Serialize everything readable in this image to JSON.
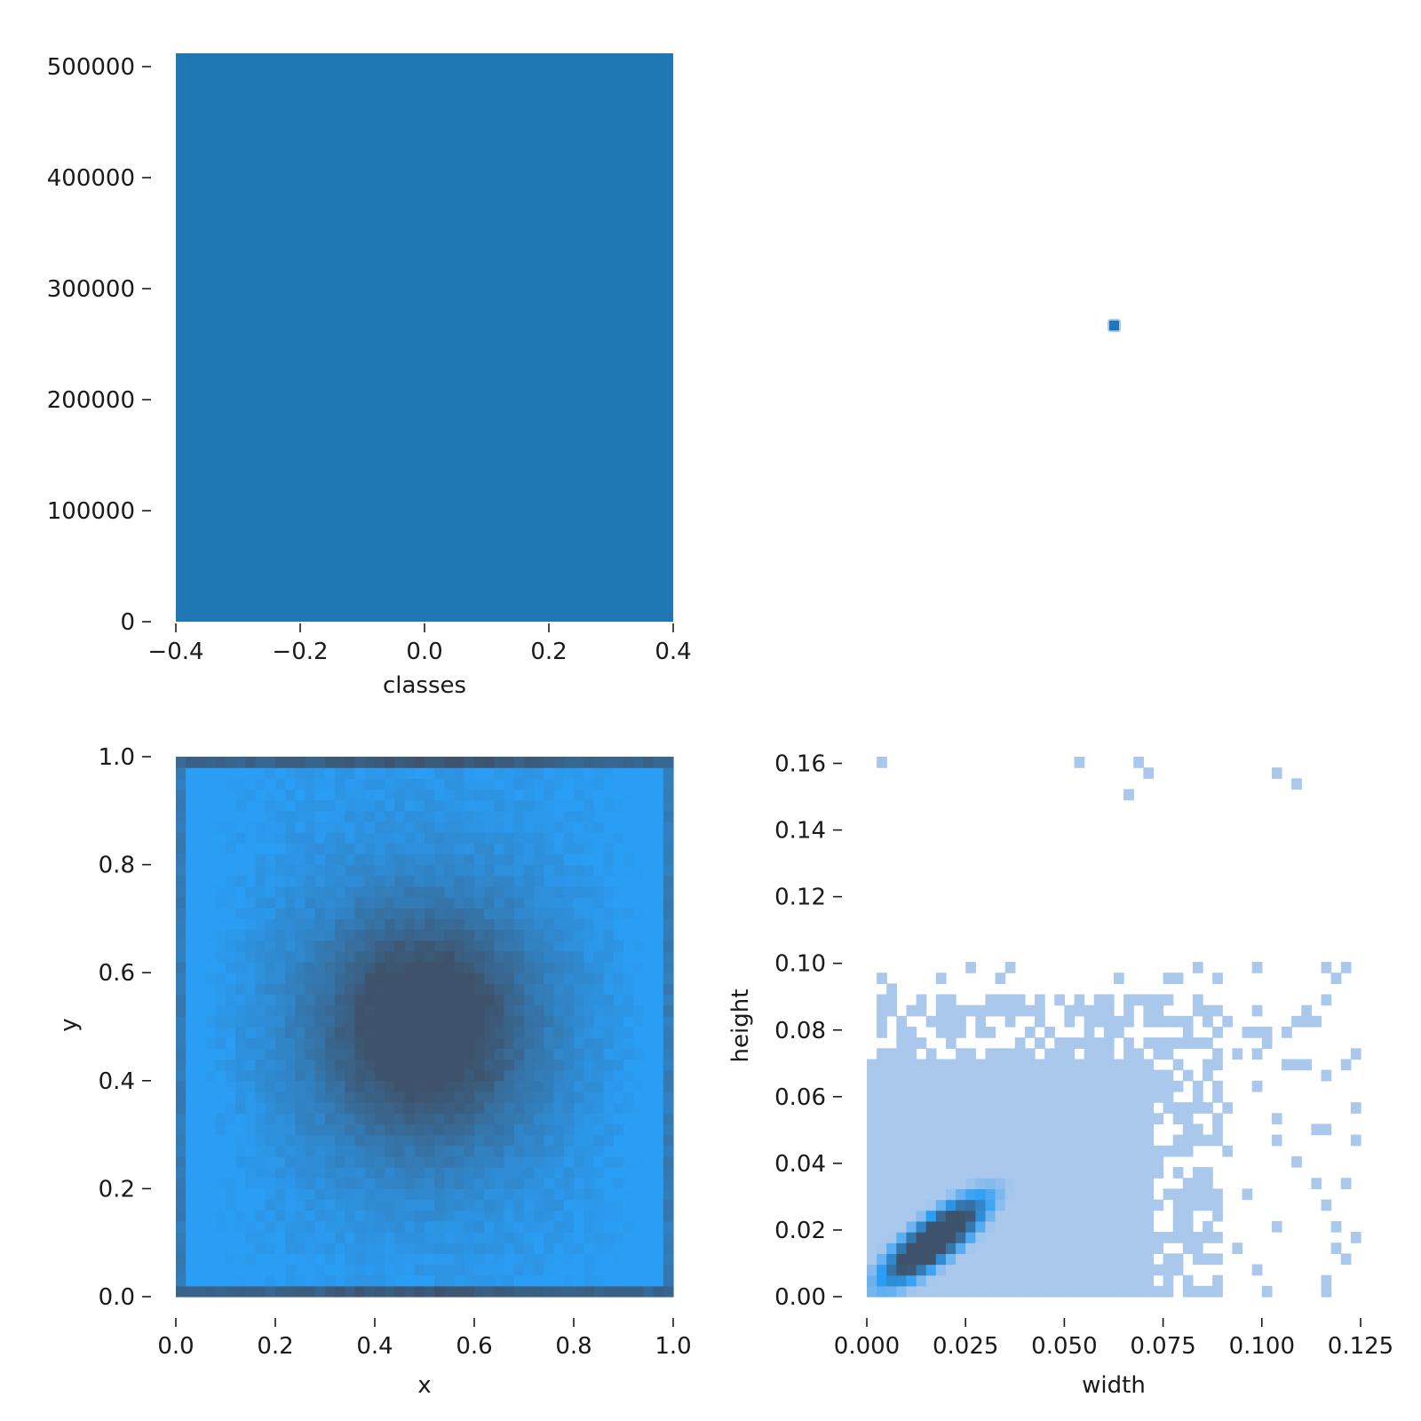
{
  "colors": {
    "bar": "#1f77b4",
    "heat_low": "#2a9df4",
    "heat_high": "#3e536b",
    "hist2d_light": "#aac8ec",
    "hist2d_mid": "#2a9df4",
    "hist2d_dark": "#3e536b"
  },
  "chart_data": [
    {
      "id": "classes-hist",
      "type": "bar",
      "xlabel": "classes",
      "ylabel": "",
      "xlim": [
        -0.4,
        0.4
      ],
      "ylim": [
        0,
        512000
      ],
      "xticks": [
        "−0.4",
        "−0.2",
        "0.0",
        "0.2",
        "0.4"
      ],
      "xtick_values": [
        -0.4,
        -0.2,
        0.0,
        0.2,
        0.4
      ],
      "yticks": [
        "0",
        "100000",
        "200000",
        "300000",
        "400000",
        "500000"
      ],
      "ytick_values": [
        0,
        100000,
        200000,
        300000,
        400000,
        500000
      ],
      "categories": [
        "0"
      ],
      "bars": [
        {
          "x0": -0.4,
          "x1": 0.4,
          "value": 512000
        }
      ]
    },
    {
      "id": "marker",
      "type": "scatter",
      "points": [
        {
          "x": 0,
          "y": 0
        }
      ]
    },
    {
      "id": "xy-hist2d",
      "type": "heatmap",
      "xlabel": "x",
      "ylabel": "y",
      "xlim": [
        0,
        1
      ],
      "ylim": [
        0,
        1
      ],
      "xticks": [
        "0.0",
        "0.2",
        "0.4",
        "0.6",
        "0.8",
        "1.0"
      ],
      "xtick_values": [
        0,
        0.2,
        0.4,
        0.6,
        0.8,
        1.0
      ],
      "yticks": [
        "0.0",
        "0.2",
        "0.4",
        "0.6",
        "0.8",
        "1.0"
      ],
      "ytick_values": [
        0,
        0.2,
        0.4,
        0.6,
        0.8,
        1.0
      ],
      "bins": 50,
      "description_density": "densest at center (0.5, 0.5) and along top/bottom edges"
    },
    {
      "id": "wh-hist2d",
      "type": "heatmap",
      "xlabel": "width",
      "ylabel": "height",
      "xlim": [
        0,
        0.125
      ],
      "ylim": [
        0,
        0.162
      ],
      "xticks": [
        "0.000",
        "0.025",
        "0.050",
        "0.075",
        "0.100",
        "0.125"
      ],
      "xtick_values": [
        0,
        0.025,
        0.05,
        0.075,
        0.1,
        0.125
      ],
      "yticks": [
        "0.00",
        "0.02",
        "0.04",
        "0.06",
        "0.08",
        "0.10",
        "0.12",
        "0.14",
        "0.16"
      ],
      "ytick_values": [
        0,
        0.02,
        0.04,
        0.06,
        0.08,
        0.1,
        0.12,
        0.14,
        0.16
      ],
      "bins": 50,
      "peak": {
        "width": 0.015,
        "height": 0.015
      }
    }
  ]
}
